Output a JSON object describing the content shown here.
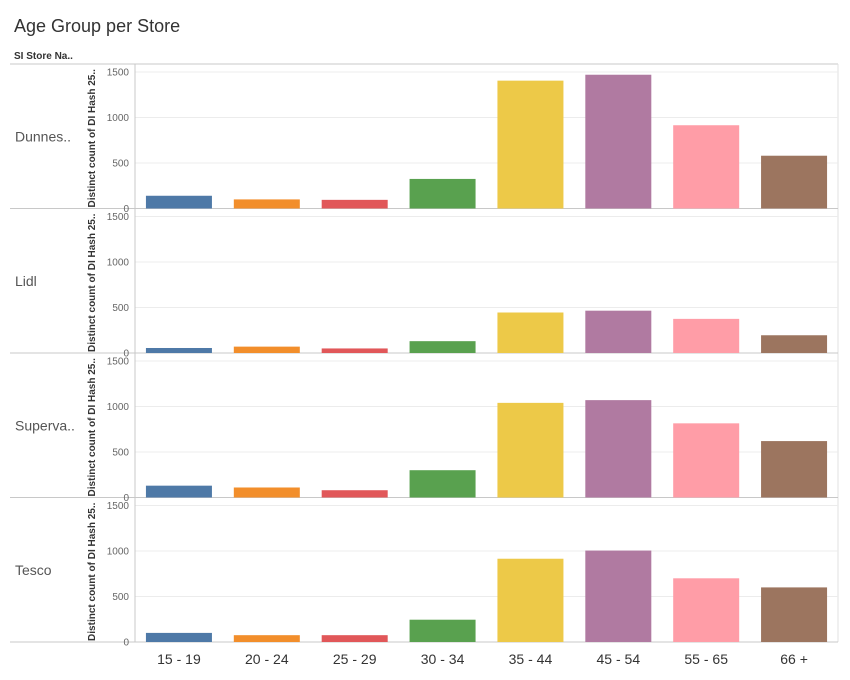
{
  "chart_data": {
    "type": "bar",
    "title": "Age Group per Store",
    "row_header": "SI Store Na..",
    "ylabel": "Distinct count of DI Hash 25..",
    "ylim": [
      0,
      1500
    ],
    "yticks": [
      0,
      500,
      1000,
      1500
    ],
    "grid": true,
    "categories": [
      "15 - 19",
      "20 - 24",
      "25 - 29",
      "30 - 34",
      "35 - 44",
      "45 - 54",
      "55 - 65",
      "66 +"
    ],
    "colors": [
      "#4e79a7",
      "#f28e2b",
      "#e15759",
      "#59a14f",
      "#edc948",
      "#b07aa1",
      "#ff9da7",
      "#9c755f"
    ],
    "stores": [
      {
        "name": "Dunnes..",
        "values": [
          140,
          100,
          95,
          325,
          1405,
          1470,
          915,
          580
        ]
      },
      {
        "name": "Lidl",
        "values": [
          55,
          70,
          50,
          130,
          445,
          465,
          375,
          195
        ]
      },
      {
        "name": "Superva..",
        "values": [
          130,
          110,
          80,
          300,
          1040,
          1070,
          815,
          620
        ]
      },
      {
        "name": "Tesco",
        "values": [
          100,
          75,
          75,
          245,
          915,
          1005,
          700,
          600
        ]
      }
    ]
  }
}
